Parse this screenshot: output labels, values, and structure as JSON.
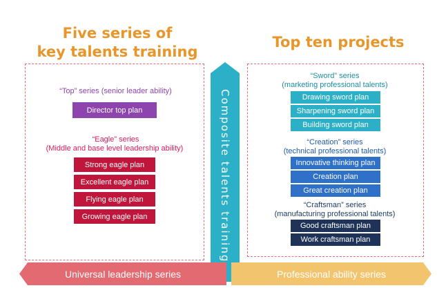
{
  "left": {
    "heading_line1": "Five series of",
    "heading_line2": "key talents training",
    "top_series": {
      "title": "“Top”  series (senior leader ability)",
      "items": [
        "Director top plan"
      ]
    },
    "eagle_series": {
      "title": "“Eagle”  series",
      "subtitle": "(Middle and base level leadership  ability)",
      "items": [
        "Strong eagle plan",
        "Excellent eagle plan",
        "Flying eagle plan",
        "Growing eagle plan"
      ]
    },
    "bottom_label": "Universal leadership series"
  },
  "center": {
    "label": "Composite talents training"
  },
  "right": {
    "heading": "Top ten projects",
    "sword_series": {
      "title": "“Sword”  series",
      "subtitle": "(marketing professional talents)",
      "items": [
        "Drawing sword plan",
        "Sharpening sword plan",
        "Building sword plan"
      ]
    },
    "creation_series": {
      "title": "“Creation”  series",
      "subtitle": "(technical professional talents)",
      "items": [
        "Innovative thinking plan",
        "Creation plan",
        "Great creation plan"
      ]
    },
    "craftsman_series": {
      "title": "“Craftsman”  series",
      "subtitle": "(manufacturing professional talents)",
      "items": [
        "Good craftsman plan",
        "Work craftsman plan"
      ]
    },
    "bottom_label": "Professional ability series"
  },
  "colors": {
    "heading": "#e8962a",
    "top": "#8e44ad",
    "eagle": "#c0163b",
    "sword": "#2bb0c8",
    "creation": "#2f70c8",
    "craftsman": "#1f3358",
    "left_bar": "#e46a72",
    "right_bar": "#f3c46e",
    "center_arrow": "#2bb0c8"
  }
}
